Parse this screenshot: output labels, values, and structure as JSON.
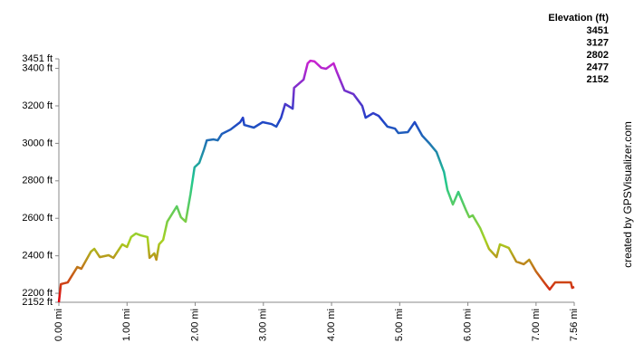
{
  "chart_data": {
    "type": "line",
    "x": [
      0,
      0.03,
      0.13,
      0.27,
      0.33,
      0.47,
      0.52,
      0.6,
      0.73,
      0.8,
      0.93,
      1.0,
      1.06,
      1.13,
      1.2,
      1.3,
      1.33,
      1.4,
      1.43,
      1.47,
      1.53,
      1.59,
      1.73,
      1.79,
      1.86,
      1.93,
      1.99,
      2.06,
      2.13,
      2.17,
      2.27,
      2.33,
      2.39,
      2.52,
      2.66,
      2.7,
      2.72,
      2.86,
      2.99,
      3.12,
      3.19,
      3.26,
      3.32,
      3.43,
      3.45,
      3.59,
      3.65,
      3.69,
      3.75,
      3.85,
      3.92,
      4.03,
      4.08,
      4.19,
      4.32,
      4.38,
      4.45,
      4.5,
      4.61,
      4.69,
      4.82,
      4.93,
      4.98,
      5.12,
      5.22,
      5.33,
      5.43,
      5.54,
      5.65,
      5.7,
      5.78,
      5.86,
      5.97,
      6.02,
      6.07,
      6.18,
      6.31,
      6.42,
      6.47,
      6.6,
      6.71,
      6.82,
      6.9,
      7.0,
      7.13,
      7.2,
      7.28,
      7.4,
      7.51,
      7.53,
      7.56
    ],
    "values": [
      2152,
      2249,
      2258,
      2340,
      2331,
      2422,
      2437,
      2393,
      2403,
      2389,
      2461,
      2447,
      2500,
      2519,
      2509,
      2500,
      2389,
      2413,
      2379,
      2461,
      2485,
      2582,
      2664,
      2606,
      2582,
      2727,
      2872,
      2896,
      2968,
      3016,
      3021,
      3016,
      3050,
      3074,
      3113,
      3137,
      3098,
      3084,
      3113,
      3103,
      3089,
      3137,
      3210,
      3185,
      3296,
      3340,
      3427,
      3441,
      3437,
      3403,
      3398,
      3427,
      3379,
      3282,
      3263,
      3234,
      3200,
      3137,
      3161,
      3147,
      3089,
      3079,
      3055,
      3060,
      3113,
      3041,
      3002,
      2954,
      2847,
      2751,
      2674,
      2741,
      2645,
      2606,
      2616,
      2548,
      2437,
      2393,
      2461,
      2442,
      2369,
      2355,
      2379,
      2316,
      2253,
      2220,
      2258,
      2258,
      2258,
      2229,
      2234
    ],
    "xlim": [
      0,
      7.56
    ],
    "xticks": [
      {
        "value": 0,
        "label": "0.00 mi"
      },
      {
        "value": 1,
        "label": "1.00 mi"
      },
      {
        "value": 2,
        "label": "2.00 mi"
      },
      {
        "value": 3,
        "label": "3.00 mi"
      },
      {
        "value": 4,
        "label": "4.00 mi"
      },
      {
        "value": 5,
        "label": "5.00 mi"
      },
      {
        "value": 6,
        "label": "6.00 mi"
      },
      {
        "value": 7,
        "label": "7.00 mi"
      },
      {
        "value": 7.56,
        "label": "7.56 mi"
      }
    ],
    "ylim": [
      2152,
      3451
    ],
    "yticks": [
      {
        "value": 2152,
        "label": "2152 ft"
      },
      {
        "value": 2200,
        "label": "2200 ft"
      },
      {
        "value": 2400,
        "label": "2400 ft"
      },
      {
        "value": 2600,
        "label": "2600 ft"
      },
      {
        "value": 2800,
        "label": "2800 ft"
      },
      {
        "value": 3000,
        "label": "3000 ft"
      },
      {
        "value": 3200,
        "label": "3200 ft"
      },
      {
        "value": 3400,
        "label": "3400 ft"
      },
      {
        "value": 3451,
        "label": "3451 ft"
      }
    ],
    "legend": {
      "title": "Elevation (ft)",
      "stops": [
        {
          "value": 3451,
          "color": "#d020d0"
        },
        {
          "value": 3127,
          "color": "#2040c8"
        },
        {
          "value": 2802,
          "color": "#20c890"
        },
        {
          "value": 2477,
          "color": "#a8d020"
        },
        {
          "value": 2152,
          "color": "#e00010"
        }
      ]
    },
    "credit": "created by GPSVisualizer.com"
  }
}
